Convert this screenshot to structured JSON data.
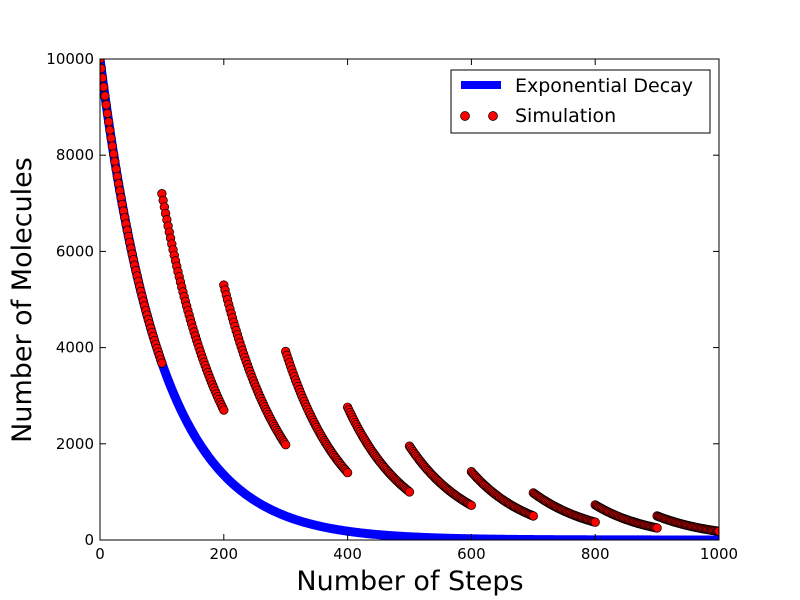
{
  "chart_data": {
    "type": "line",
    "xlabel": "Number of Steps",
    "ylabel": "Number of Molecules",
    "xlim": [
      0,
      1000
    ],
    "ylim": [
      0,
      10000
    ],
    "xticks": [
      0,
      200,
      400,
      600,
      800,
      1000
    ],
    "yticks": [
      0,
      2000,
      4000,
      6000,
      8000,
      10000
    ],
    "grid": false,
    "legend_position": "top-right",
    "series": [
      {
        "name": "Exponential Decay",
        "kind": "line",
        "color": "#0000ff",
        "formula": "y = 10000 * exp(-0.01 * x)",
        "x": [
          0,
          100,
          200,
          300,
          400,
          500,
          600,
          700,
          800,
          900,
          1000
        ],
        "y": [
          10000,
          3679,
          1353,
          498,
          183,
          67,
          25,
          9,
          3,
          1,
          0
        ]
      },
      {
        "name": "Simulation",
        "kind": "scatter",
        "color": "#ff0000",
        "edge_color": "#000000",
        "segments": [
          {
            "x_start": 0,
            "x_end": 100,
            "y_start": 10000,
            "y_end": 3679
          },
          {
            "x_start": 100,
            "x_end": 200,
            "y_start": 7200,
            "y_end": 2700
          },
          {
            "x_start": 200,
            "x_end": 300,
            "y_start": 5300,
            "y_end": 1980
          },
          {
            "x_start": 300,
            "x_end": 400,
            "y_start": 3920,
            "y_end": 1400
          },
          {
            "x_start": 400,
            "x_end": 500,
            "y_start": 2760,
            "y_end": 1000
          },
          {
            "x_start": 500,
            "x_end": 600,
            "y_start": 1950,
            "y_end": 720
          },
          {
            "x_start": 600,
            "x_end": 700,
            "y_start": 1420,
            "y_end": 500
          },
          {
            "x_start": 700,
            "x_end": 800,
            "y_start": 980,
            "y_end": 370
          },
          {
            "x_start": 800,
            "x_end": 900,
            "y_start": 730,
            "y_end": 250
          },
          {
            "x_start": 900,
            "x_end": 1000,
            "y_start": 500,
            "y_end": 180
          }
        ]
      }
    ]
  }
}
